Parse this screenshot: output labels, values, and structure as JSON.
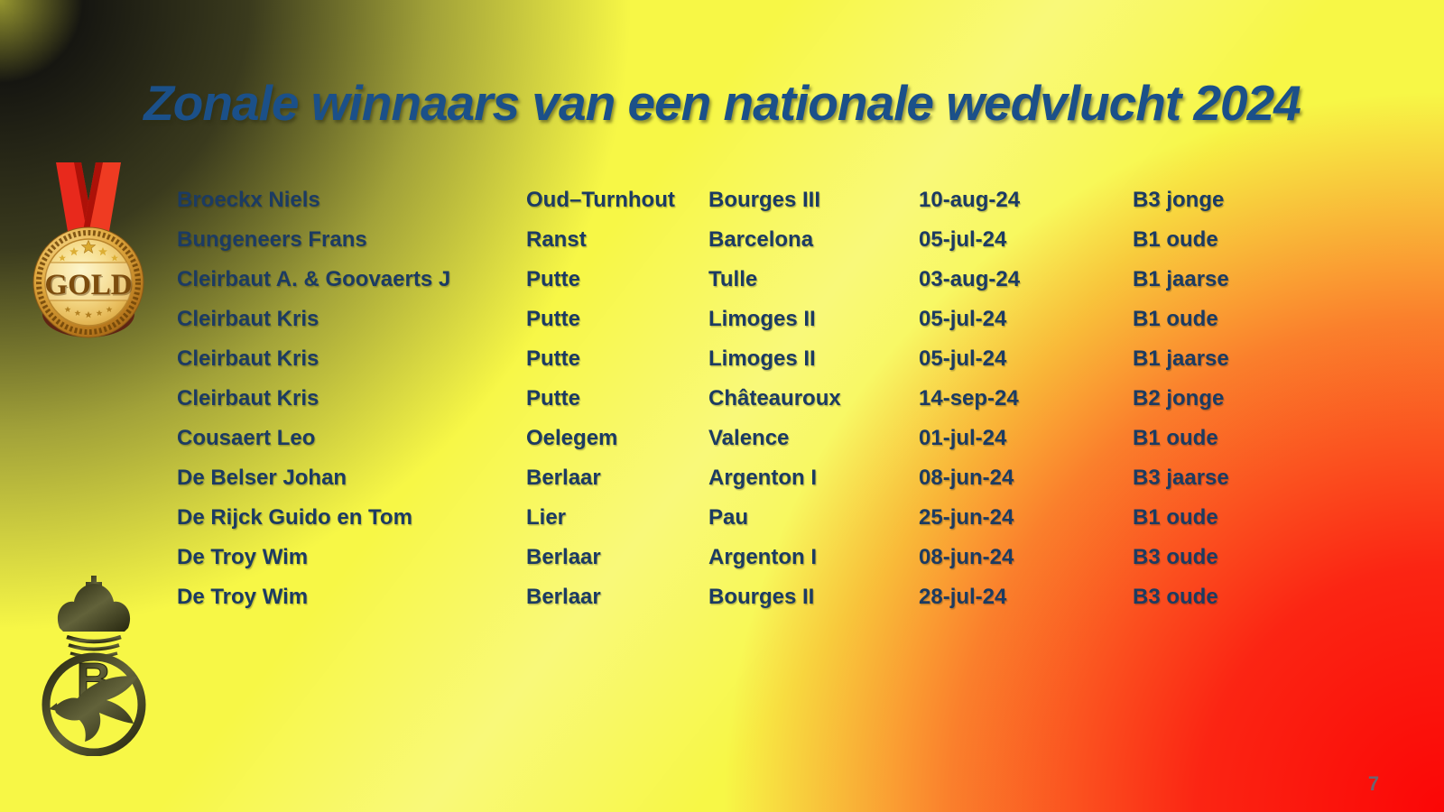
{
  "slide": {
    "title": "Zonale winnaars van een nationale wedvlucht 2024",
    "page_number": "7"
  },
  "table": {
    "rows": [
      [
        "Broeckx Niels",
        "Oud–Turnhout",
        "Bourges III",
        "10-aug-24",
        "B3 jonge"
      ],
      [
        "Bungeneers Frans",
        "Ranst",
        "Barcelona",
        "05-jul-24",
        "B1 oude"
      ],
      [
        "Cleirbaut A. & Goovaerts J",
        "Putte",
        "Tulle",
        "03-aug-24",
        "B1 jaarse"
      ],
      [
        "Cleirbaut Kris",
        "Putte",
        "Limoges II",
        "05-jul-24",
        "B1 oude"
      ],
      [
        "Cleirbaut Kris",
        "Putte",
        "Limoges II",
        "05-jul-24",
        "B1 jaarse"
      ],
      [
        "Cleirbaut Kris",
        "Putte",
        "Châteauroux",
        "14-sep-24",
        "B2 jonge"
      ],
      [
        "Cousaert Leo",
        "Oelegem",
        "Valence",
        "01-jul-24",
        "B1 oude"
      ],
      [
        "De Belser Johan",
        "Berlaar",
        "Argenton I",
        "08-jun-24",
        "B3 jaarse"
      ],
      [
        "De Rijck Guido en Tom",
        "Lier",
        "Pau",
        "25-jun-24",
        "B1 oude"
      ],
      [
        "De Troy Wim",
        "Berlaar",
        "Argenton I",
        "08-jun-24",
        "B3 oude"
      ],
      [
        "De Troy Wim",
        "Berlaar",
        "Bourges II",
        "28-jul-24",
        "B3 oude"
      ]
    ]
  },
  "medal": {
    "label": "GOLD"
  },
  "logo": {
    "letter": "B"
  },
  "colors": {
    "title_blue": "#1b5089",
    "table_navy": "#1c3b62",
    "background_yellow": "#f7f746",
    "corner_dark": "#131310",
    "corner_red": "#fb0606",
    "page_number_gray": "#6d6470"
  }
}
